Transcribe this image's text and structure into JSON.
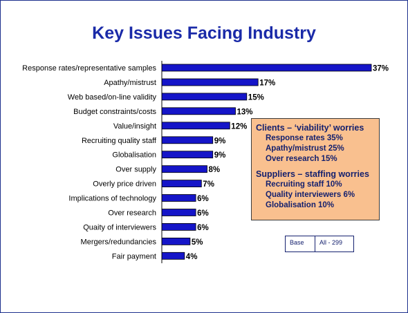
{
  "title": "Key Issues Facing Industry",
  "chart_data": {
    "type": "bar",
    "orientation": "horizontal",
    "categories": [
      "Response rates/representative samples",
      "Apathy/mistrust",
      "Web based/on-line validity",
      "Budget constraints/costs",
      "Value/insight",
      "Recruiting quality staff",
      "Globalisation",
      "Over supply",
      "Overly price driven",
      "Implications of technology",
      "Over research",
      "Quaity of interviewers",
      "Mergers/redundancies",
      "Fair payment"
    ],
    "values": [
      37,
      17,
      15,
      13,
      12,
      9,
      9,
      8,
      7,
      6,
      6,
      6,
      5,
      4
    ],
    "value_suffix": "%",
    "bar_color": "#1515c8",
    "xlim": [
      0,
      37
    ],
    "grid": false,
    "legend": "none"
  },
  "callout": {
    "clients_heading": "Clients – ‘viability’ worries",
    "clients_items": [
      "Response rates 35%",
      "Apathy/mistrust 25%",
      "Over research 15%"
    ],
    "suppliers_heading": "Suppliers – staffing worries",
    "suppliers_items": [
      "Recruiting staff 10%",
      "Quality interviewers 6%",
      "Globalisation 10%"
    ],
    "background_color": "#f9c08f"
  },
  "base_box": {
    "label": "Base",
    "value": "All - 299"
  },
  "colors": {
    "title": "#1a2aa8",
    "border": "#1c2f8c"
  }
}
